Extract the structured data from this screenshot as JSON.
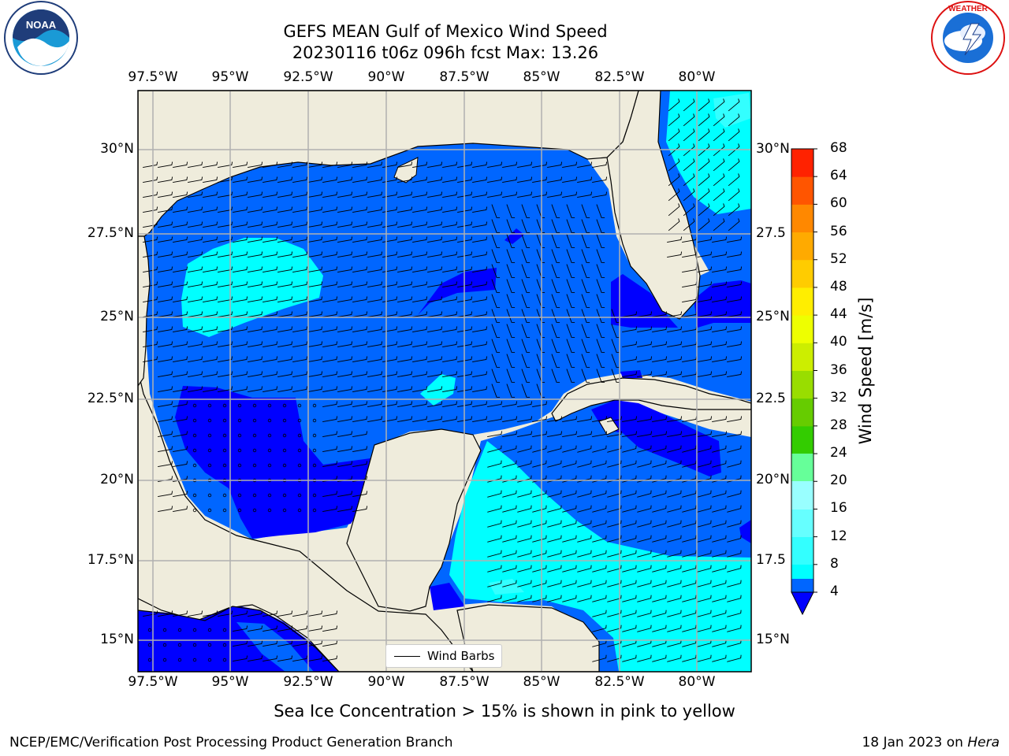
{
  "title": {
    "line1": "GEFS MEAN Gulf of Mexico Wind Speed",
    "line2": "20230116 t06z 096h fcst   Max: 13.26"
  },
  "logos": {
    "left": {
      "name": "noaa-logo",
      "text": "NOAA"
    },
    "right": {
      "name": "national-weather-service-logo",
      "text": "NATIONAL WEATHER SERVICE"
    }
  },
  "map": {
    "lon_ticks": [
      "97.5°W",
      "95°W",
      "92.5°W",
      "90°W",
      "87.5°W",
      "85°W",
      "82.5°W",
      "80°W"
    ],
    "lat_ticks_left": [
      "30°N",
      "27.5°N",
      "25°N",
      "22.5°N",
      "20°N",
      "17.5°N",
      "15°N"
    ],
    "lat_ticks_right": [
      "30°N",
      "27.5",
      "25°N",
      "22.5",
      "20°N",
      "17.5",
      "15°N"
    ],
    "legend_label": "Wind Barbs",
    "colors": {
      "land": "#efecdc",
      "grid": "#b0b0b0"
    }
  },
  "colorbar": {
    "label": "Wind Speed [m/s]",
    "ticks": [
      "4",
      "8",
      "12",
      "16",
      "20",
      "24",
      "28",
      "32",
      "36",
      "40",
      "44",
      "48",
      "52",
      "56",
      "60",
      "64",
      "68"
    ],
    "colors": [
      "#0066ff",
      "#00ffff",
      "#33ffff",
      "#99ffff",
      "#66ff66",
      "#00dd00",
      "#33cc00",
      "#66cc00",
      "#99dd00",
      "#ccee00",
      "#eeff00",
      "#ffee00",
      "#ffcc00",
      "#ffaa00",
      "#ff8800",
      "#ff5500",
      "#ff2200",
      "#ff0000"
    ],
    "under_color": "#0000ff"
  },
  "note": "Sea Ice Concentration > 15% is shown in pink to yellow",
  "footer": {
    "left": "NCEP/EMC/Verification Post Processing Product Generation Branch",
    "date": "18 Jan 2023 on ",
    "machine": "Hera"
  }
}
